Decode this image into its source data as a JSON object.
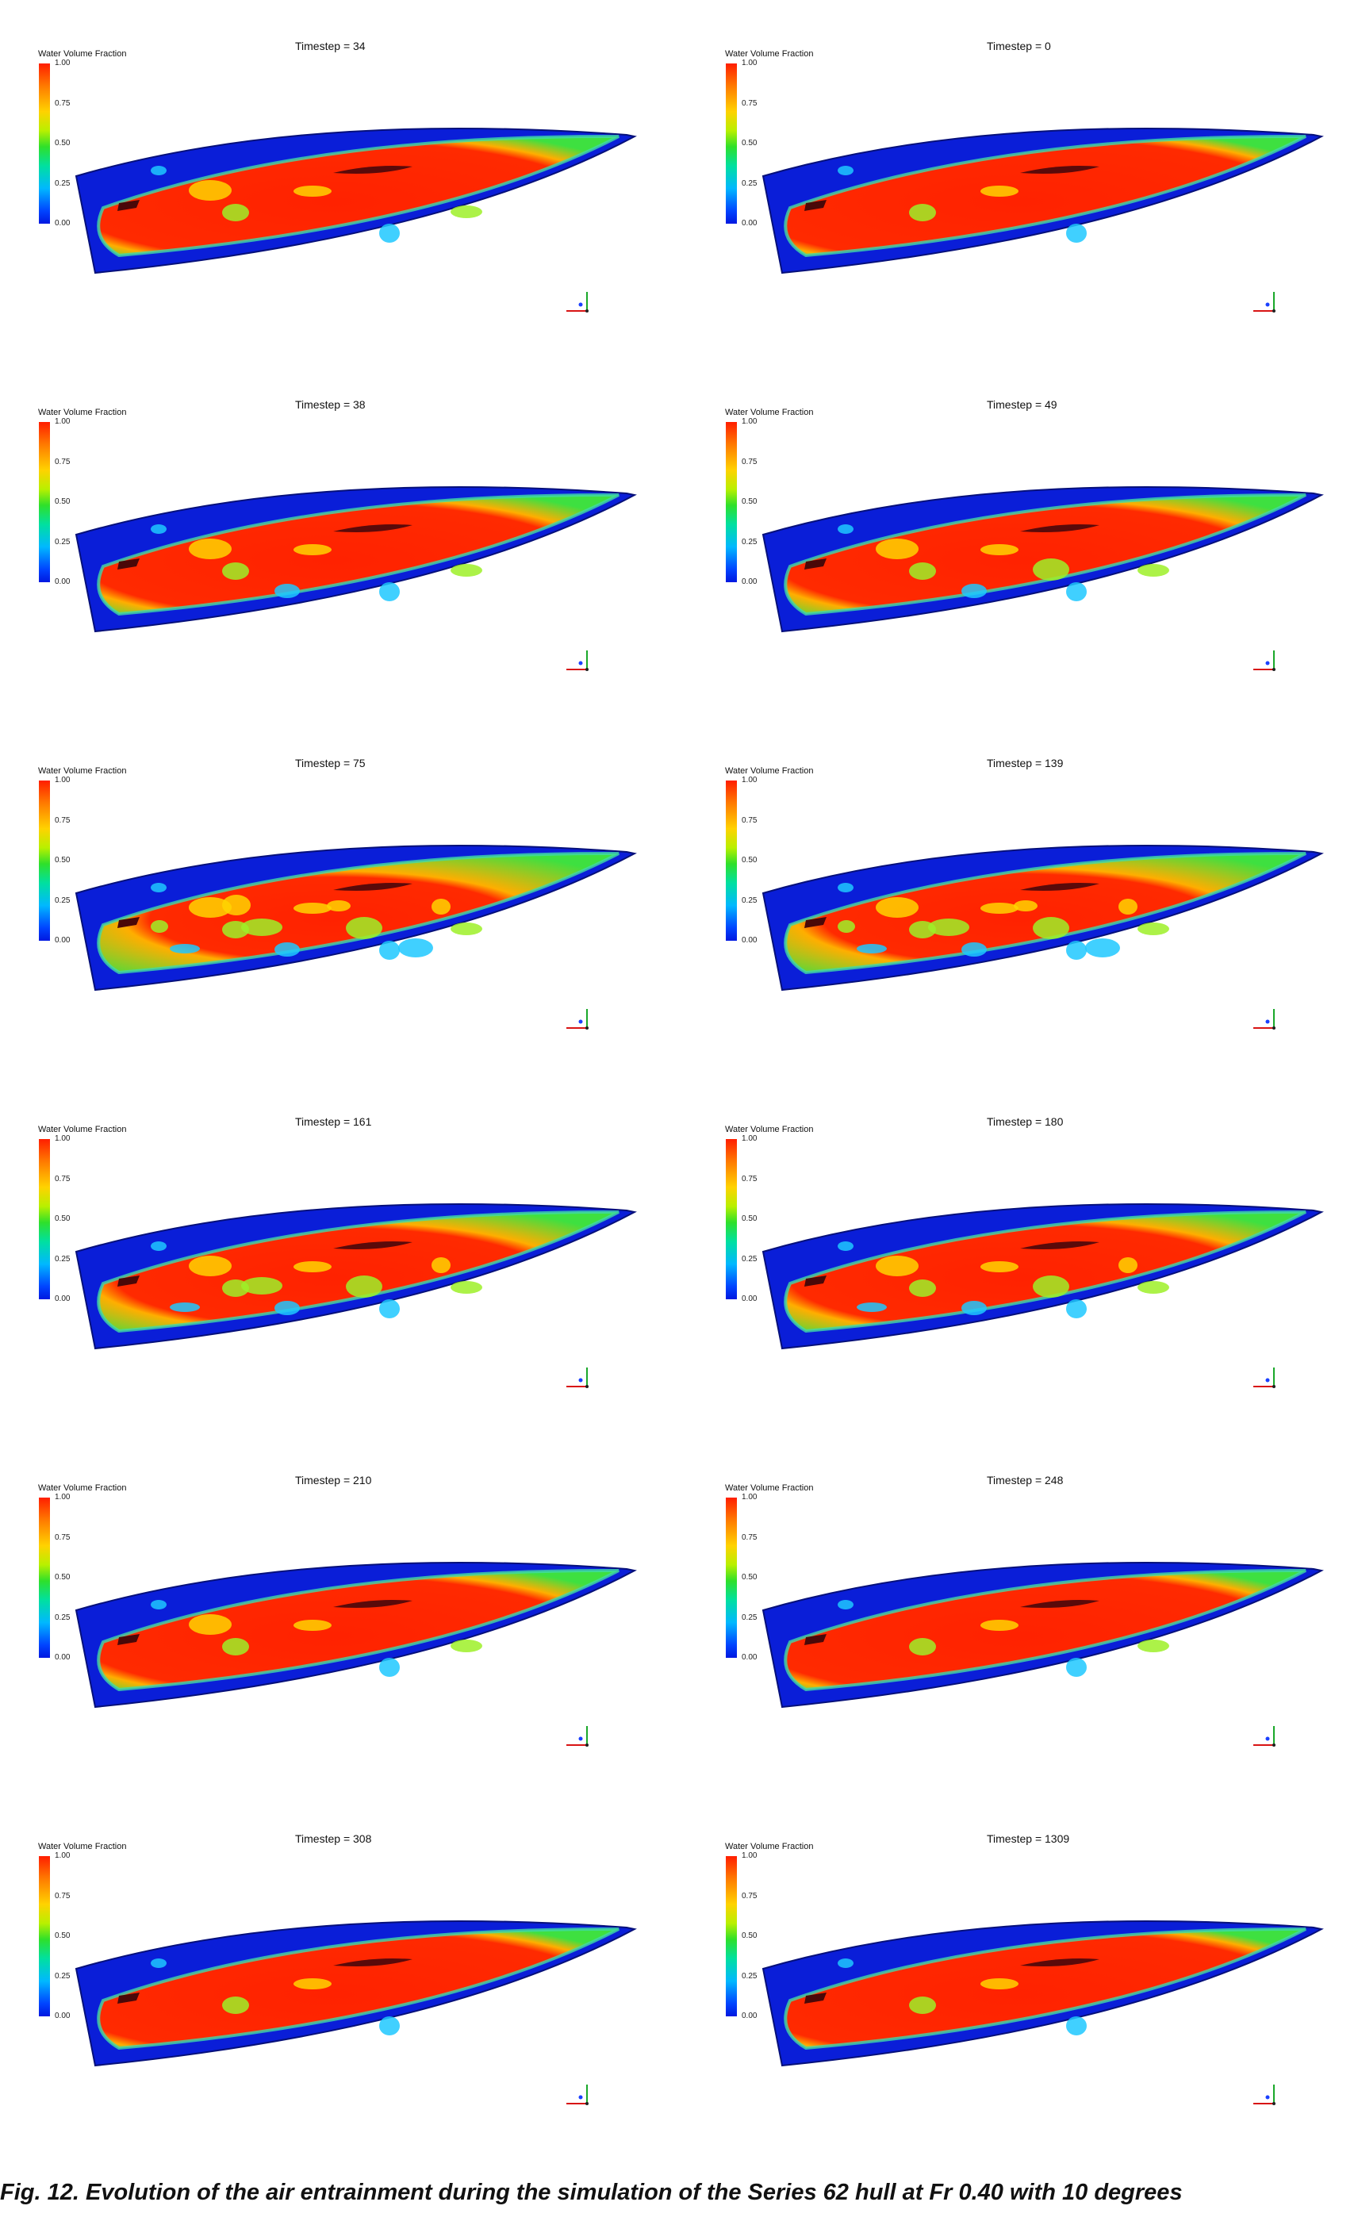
{
  "legend": {
    "title": "Water Volume Fraction",
    "ticks": [
      "1.00",
      "0.75",
      "0.50",
      "0.25",
      "0.00"
    ],
    "colors": {
      "water": "#ff1e00",
      "air": "#0018e0",
      "interface": "#2fe02a"
    }
  },
  "panels": [
    {
      "timestep_label": "Timestep = 34",
      "water_fraction_level": 0.86
    },
    {
      "timestep_label": "Timestep = 0",
      "water_fraction_level": 0.9
    },
    {
      "timestep_label": "Timestep = 38",
      "water_fraction_level": 0.82
    },
    {
      "timestep_label": "Timestep = 49",
      "water_fraction_level": 0.8
    },
    {
      "timestep_label": "Timestep = 75",
      "water_fraction_level": 0.62
    },
    {
      "timestep_label": "Timestep = 139",
      "water_fraction_level": 0.66
    },
    {
      "timestep_label": "Timestep = 161",
      "water_fraction_level": 0.72
    },
    {
      "timestep_label": "Timestep = 180",
      "water_fraction_level": 0.76
    },
    {
      "timestep_label": "Timestep = 210",
      "water_fraction_level": 0.84
    },
    {
      "timestep_label": "Timestep = 248",
      "water_fraction_level": 0.88
    },
    {
      "timestep_label": "Timestep = 308",
      "water_fraction_level": 0.9
    },
    {
      "timestep_label": "Timestep = 1309",
      "water_fraction_level": 0.91
    }
  ],
  "caption": "Fig. 12. Evolution of the air entrainment during the simulation of the Series 62 hull at Fr 0.40 with 10 degrees"
}
